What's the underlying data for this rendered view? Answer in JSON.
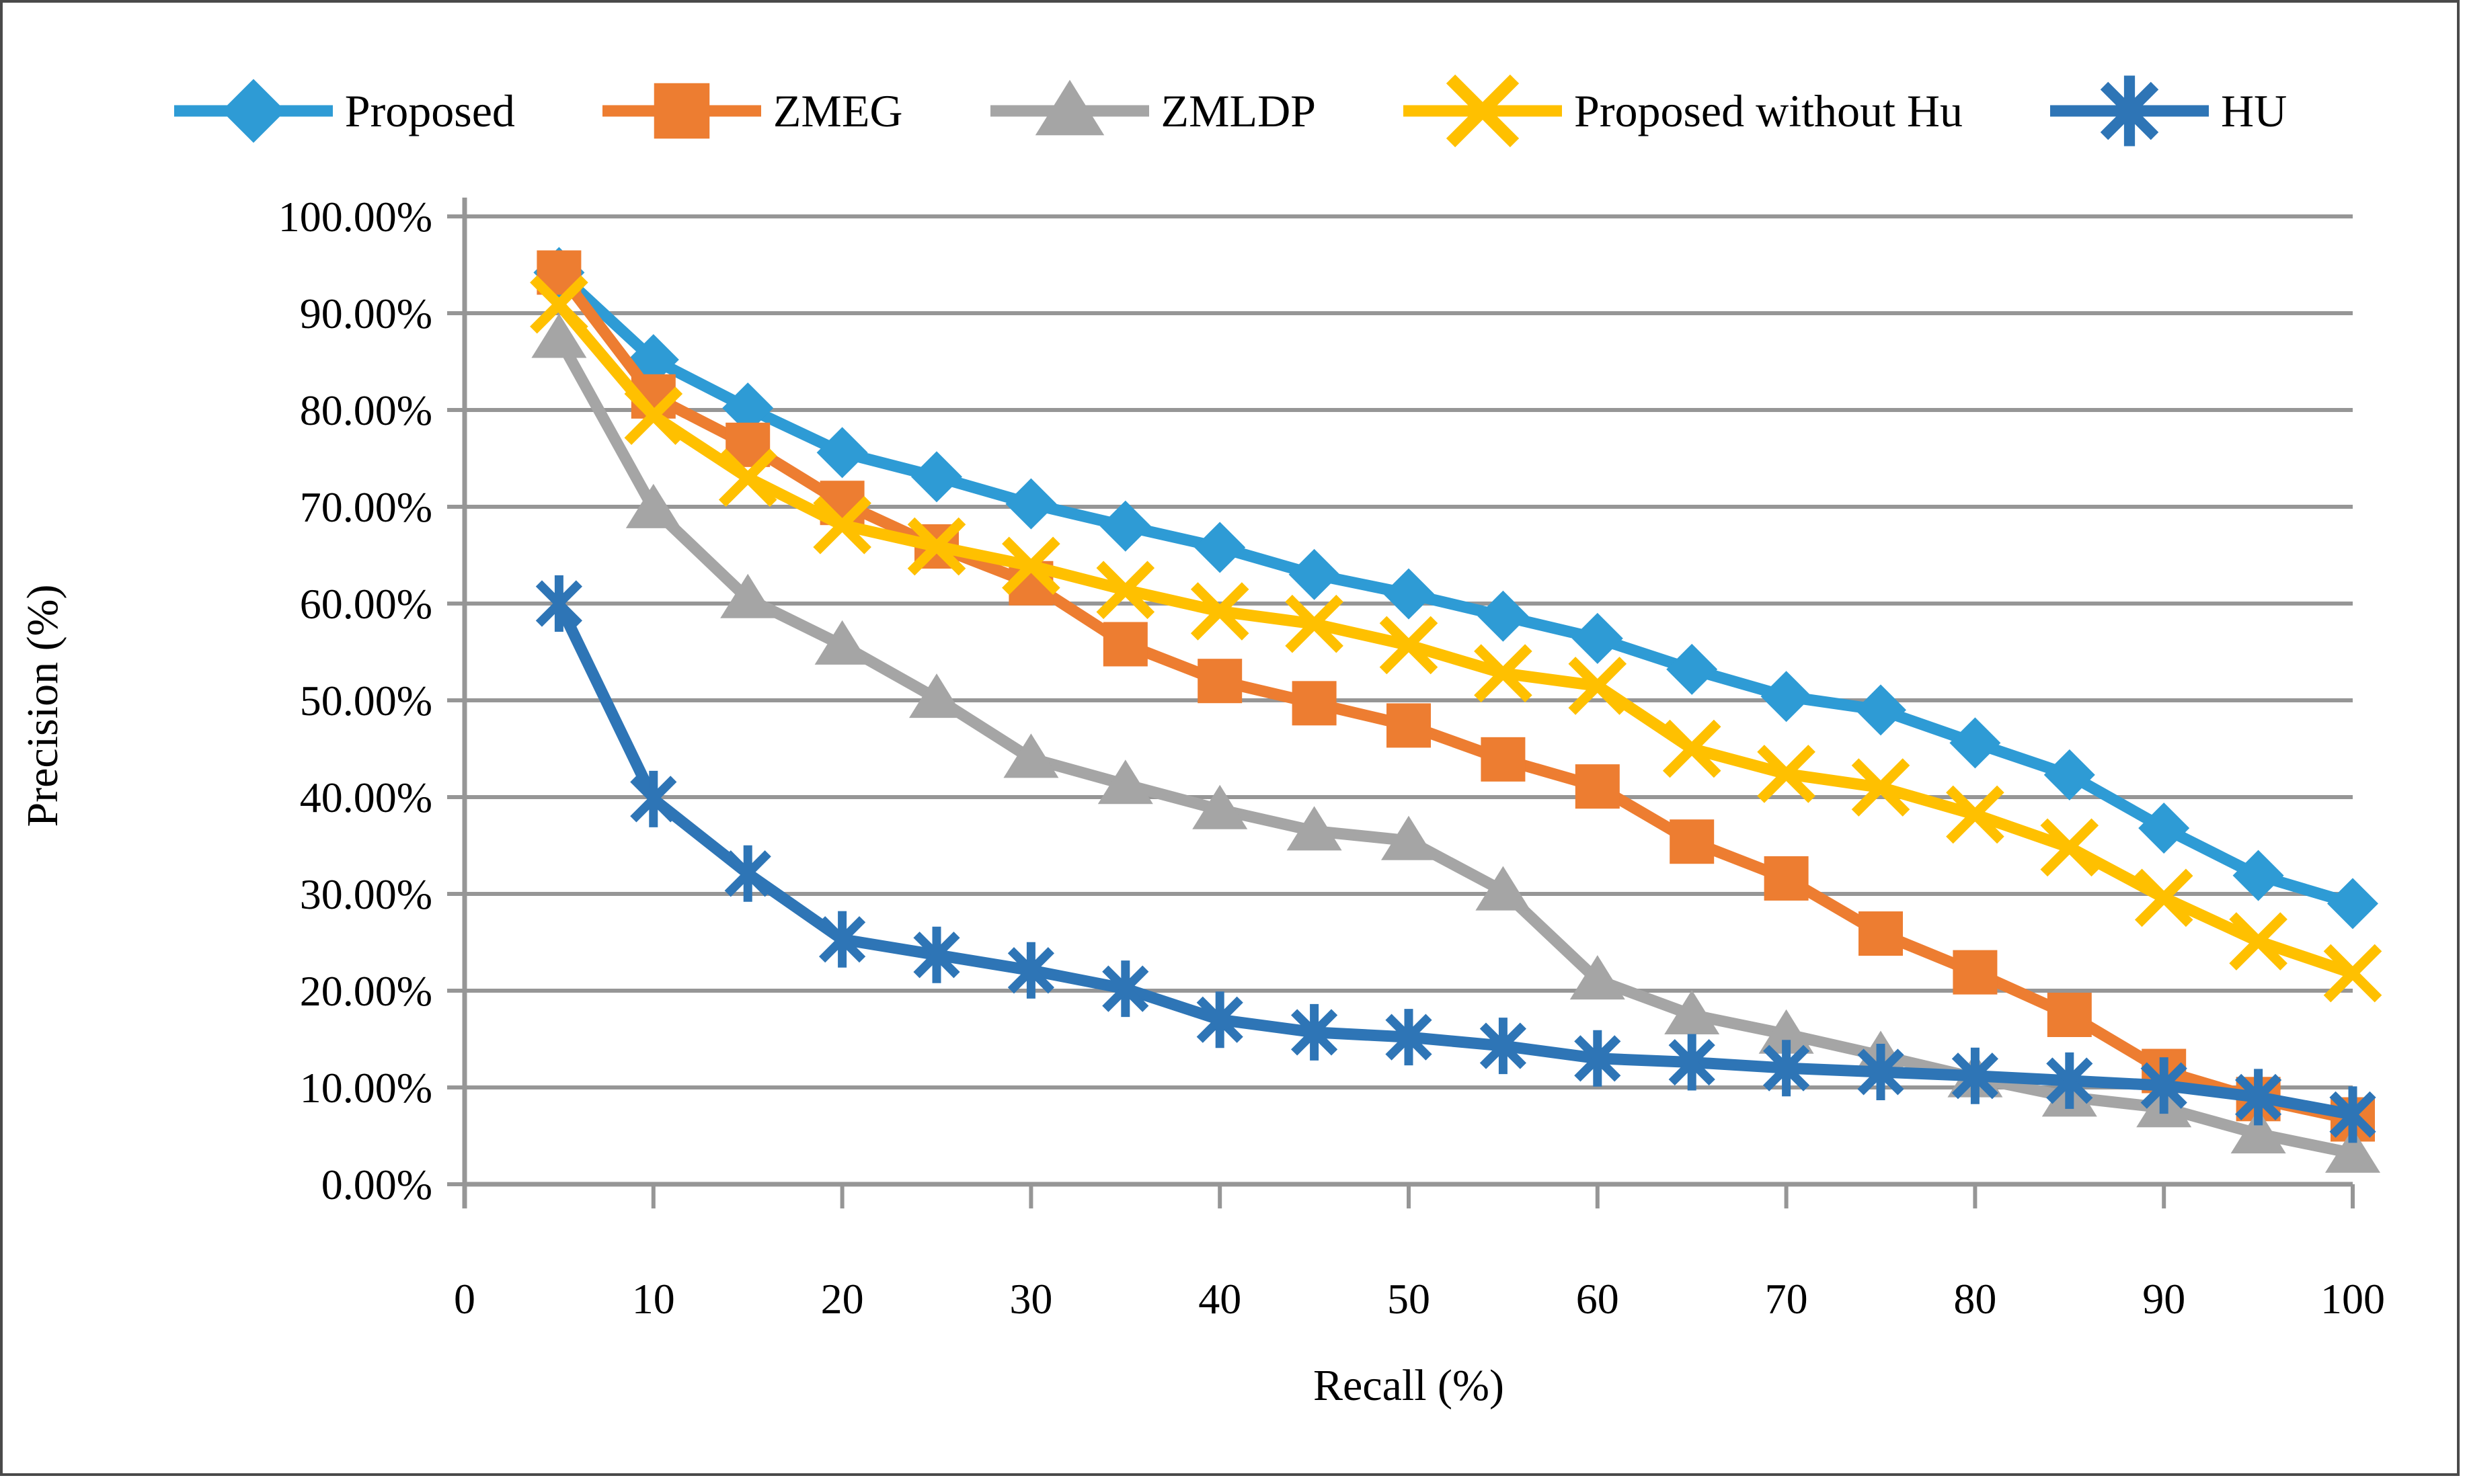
{
  "colors": {
    "background": "#FFFFFF",
    "figure_border": "#4A4A4A",
    "gridline": "#969696",
    "axis": "#969696",
    "text": "#000000"
  },
  "chart_data": {
    "type": "line",
    "title": "",
    "xlabel": "Recall (%)",
    "ylabel": "Precision (%)",
    "xlim": [
      0,
      100
    ],
    "ylim": [
      0,
      100
    ],
    "grid": "horizontal",
    "legend_position": "top",
    "x_ticks": [
      {
        "value": 0,
        "label": "0"
      },
      {
        "value": 10,
        "label": "10"
      },
      {
        "value": 20,
        "label": "20"
      },
      {
        "value": 30,
        "label": "30"
      },
      {
        "value": 40,
        "label": "40"
      },
      {
        "value": 50,
        "label": "50"
      },
      {
        "value": 60,
        "label": "60"
      },
      {
        "value": 70,
        "label": "70"
      },
      {
        "value": 80,
        "label": "80"
      },
      {
        "value": 90,
        "label": "90"
      },
      {
        "value": 100,
        "label": "100"
      }
    ],
    "y_ticks": [
      {
        "value": 0,
        "label": "0.00%"
      },
      {
        "value": 10,
        "label": "10.00%"
      },
      {
        "value": 20,
        "label": "20.00%"
      },
      {
        "value": 30,
        "label": "30.00%"
      },
      {
        "value": 40,
        "label": "40.00%"
      },
      {
        "value": 50,
        "label": "50.00%"
      },
      {
        "value": 60,
        "label": "60.00%"
      },
      {
        "value": 70,
        "label": "70.00%"
      },
      {
        "value": 80,
        "label": "80.00%"
      },
      {
        "value": 90,
        "label": "90.00%"
      },
      {
        "value": 100,
        "label": "100.00%"
      }
    ],
    "x": [
      5,
      10,
      15,
      20,
      25,
      30,
      35,
      40,
      45,
      50,
      55,
      60,
      65,
      70,
      75,
      80,
      85,
      90,
      95,
      100
    ],
    "series": [
      {
        "name": "Proposed",
        "marker": "diamond",
        "color": "#2E9BD5",
        "values": [
          94.2,
          85.2,
          80.2,
          75.6,
          73.1,
          70.3,
          68.0,
          65.8,
          63.0,
          61.0,
          58.7,
          56.4,
          53.2,
          50.4,
          49.0,
          45.6,
          42.3,
          36.8,
          31.9,
          29.0
        ]
      },
      {
        "name": "ZMEG",
        "marker": "square",
        "color": "#ED7D31",
        "values": [
          94.2,
          81.4,
          76.4,
          70.4,
          65.9,
          62.1,
          55.8,
          52.0,
          49.7,
          47.4,
          43.9,
          41.1,
          35.4,
          31.6,
          25.9,
          21.9,
          17.5,
          11.7,
          8.8,
          6.7
        ]
      },
      {
        "name": "ZMLDP",
        "marker": "triangle",
        "color": "#A5A5A5",
        "values": [
          87.4,
          69.8,
          60.5,
          55.7,
          50.2,
          44.0,
          41.3,
          38.7,
          36.5,
          35.5,
          30.3,
          21.1,
          17.5,
          15.5,
          13.3,
          11.0,
          9.0,
          7.9,
          5.2,
          3.2
        ]
      },
      {
        "name": "Proposed without Hu",
        "marker": "x",
        "color": "#FFC000",
        "values": [
          90.9,
          79.4,
          73.0,
          68.1,
          65.9,
          63.9,
          61.4,
          59.2,
          57.9,
          55.7,
          52.8,
          51.5,
          45.0,
          42.4,
          41.0,
          38.2,
          34.8,
          29.6,
          25.1,
          21.8
        ]
      },
      {
        "name": "HU",
        "marker": "star",
        "color": "#2E75B6",
        "values": [
          60.0,
          39.8,
          32.1,
          25.3,
          23.7,
          22.1,
          20.2,
          17.0,
          15.7,
          15.2,
          14.3,
          13.0,
          12.6,
          12.0,
          11.6,
          11.2,
          10.7,
          10.2,
          9.0,
          7.2
        ]
      }
    ]
  }
}
